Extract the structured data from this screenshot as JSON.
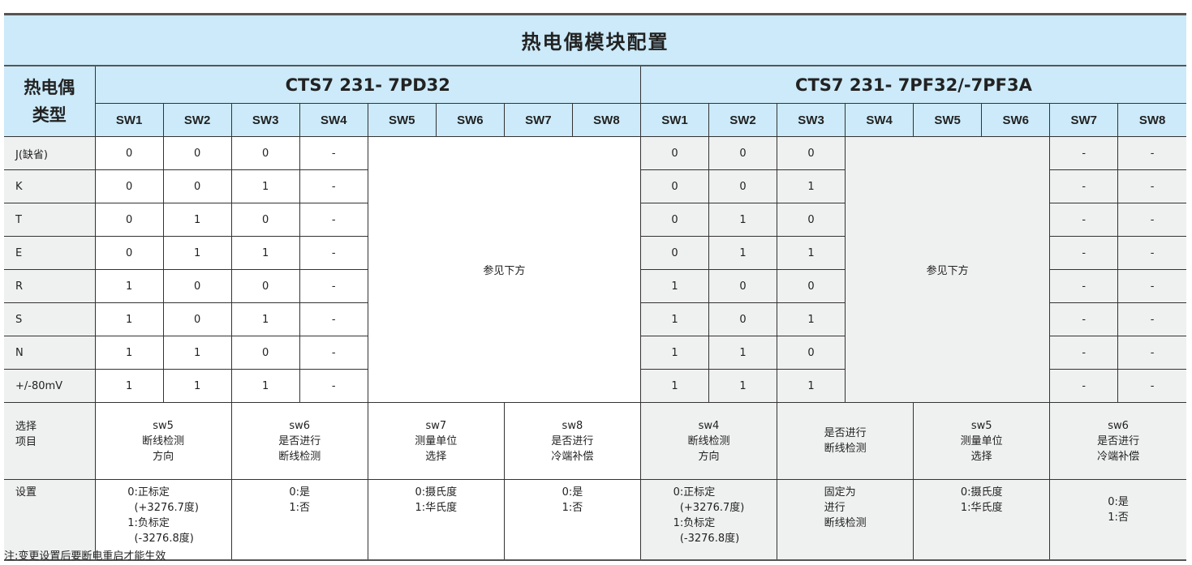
{
  "title": "热电偶模块配置",
  "type_header": [
    "热电偶",
    "类型"
  ],
  "models": [
    "CTS7 231- 7PD32",
    "CTS7 231- 7PF32/-7PF3A"
  ],
  "switch_headers": [
    "SW1",
    "SW2",
    "SW3",
    "SW4",
    "SW5",
    "SW6",
    "SW7",
    "SW8"
  ],
  "see_below": "参见下方",
  "rows": [
    {
      "type": "J(缺省)",
      "a": [
        "0",
        "0",
        "0",
        "-"
      ],
      "b": [
        "0",
        "0",
        "0"
      ],
      "c": [
        "-",
        "-"
      ]
    },
    {
      "type": "K",
      "a": [
        "0",
        "0",
        "1",
        "-"
      ],
      "b": [
        "0",
        "0",
        "1"
      ],
      "c": [
        "-",
        "-"
      ]
    },
    {
      "type": "T",
      "a": [
        "0",
        "1",
        "0",
        "-"
      ],
      "b": [
        "0",
        "1",
        "0"
      ],
      "c": [
        "-",
        "-"
      ]
    },
    {
      "type": "E",
      "a": [
        "0",
        "1",
        "1",
        "-"
      ],
      "b": [
        "0",
        "1",
        "1"
      ],
      "c": [
        "-",
        "-"
      ]
    },
    {
      "type": "R",
      "a": [
        "1",
        "0",
        "0",
        "-"
      ],
      "b": [
        "1",
        "0",
        "0"
      ],
      "c": [
        "-",
        "-"
      ]
    },
    {
      "type": "S",
      "a": [
        "1",
        "0",
        "1",
        "-"
      ],
      "b": [
        "1",
        "0",
        "1"
      ],
      "c": [
        "-",
        "-"
      ]
    },
    {
      "type": "N",
      "a": [
        "1",
        "1",
        "0",
        "-"
      ],
      "b": [
        "1",
        "1",
        "0"
      ],
      "c": [
        "-",
        "-"
      ]
    },
    {
      "type": "+/-80mV",
      "a": [
        "1",
        "1",
        "1",
        "-"
      ],
      "b": [
        "1",
        "1",
        "1"
      ],
      "c": [
        "-",
        "-"
      ]
    }
  ],
  "select_label": [
    "选择",
    "项目"
  ],
  "select_items": [
    [
      "sw5",
      "断线检测",
      "方向"
    ],
    [
      "sw6",
      "是否进行",
      "断线检测"
    ],
    [
      "sw7",
      "测量单位",
      "选择"
    ],
    [
      "sw8",
      "是否进行",
      "冷端补偿"
    ],
    [
      "sw4",
      "断线检测",
      "方向"
    ],
    [
      "是否进行",
      "断线检测"
    ],
    [
      "sw5",
      "测量单位",
      "选择"
    ],
    [
      "sw6",
      "是否进行",
      "冷端补偿"
    ]
  ],
  "setting_label": "设置",
  "settings": [
    [
      "0:正标定",
      "  (+3276.7度)",
      "1:负标定",
      "  (-3276.8度)"
    ],
    [
      "0:是",
      "1:否"
    ],
    [
      "0:摄氏度",
      "1:华氏度"
    ],
    [
      "0:是",
      "1:否"
    ],
    [
      "0:正标定",
      "  (+3276.7度)",
      "1:负标定",
      "  (-3276.8度)"
    ],
    [
      "固定为",
      "进行",
      "断线检测"
    ],
    [
      "0:摄氏度",
      "1:华氏度"
    ],
    [
      "0:是",
      "1:否"
    ]
  ],
  "note": "注:变更设置后要断电重启才能生效",
  "colors": {
    "header_bg": "#cceaf9",
    "label_bg": "#eff0f0",
    "border": "#333333"
  }
}
